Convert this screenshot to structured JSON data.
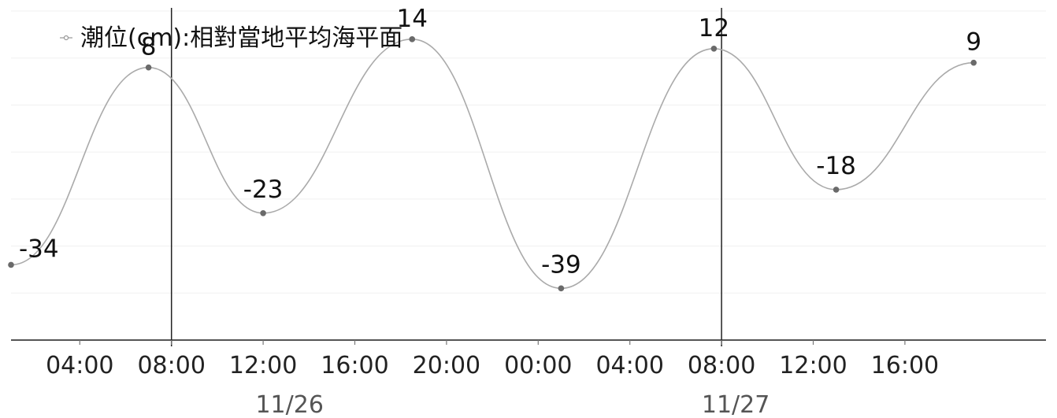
{
  "chart_data": {
    "type": "line",
    "legend": "潮位(cm):相對當地平均海平面",
    "legend_position": "top-left",
    "grid": true,
    "ylim": [
      -50,
      20
    ],
    "x_range": [
      "2021-11-26T01:00",
      "2021-11-27T19:00"
    ],
    "x_tick_labels": [
      "04:00",
      "08:00",
      "12:00",
      "16:00",
      "20:00",
      "00:00",
      "04:00",
      "08:00",
      "12:00",
      "16:00"
    ],
    "date_labels": [
      "11/26",
      "11/27"
    ],
    "series": [
      {
        "name": "潮位(cm):相對當地平均海平面",
        "color": "#9a9a9a",
        "points": [
          {
            "x": "2021-11-26T01:00",
            "y": -34
          },
          {
            "x": "2021-11-26T07:00",
            "y": 8
          },
          {
            "x": "2021-11-26T12:00",
            "y": -23
          },
          {
            "x": "2021-11-26T18:30",
            "y": 14
          },
          {
            "x": "2021-11-27T01:00",
            "y": -39
          },
          {
            "x": "2021-11-27T07:40",
            "y": 12
          },
          {
            "x": "2021-11-27T13:00",
            "y": -18
          },
          {
            "x": "2021-11-27T19:00",
            "y": 9
          }
        ]
      }
    ]
  }
}
